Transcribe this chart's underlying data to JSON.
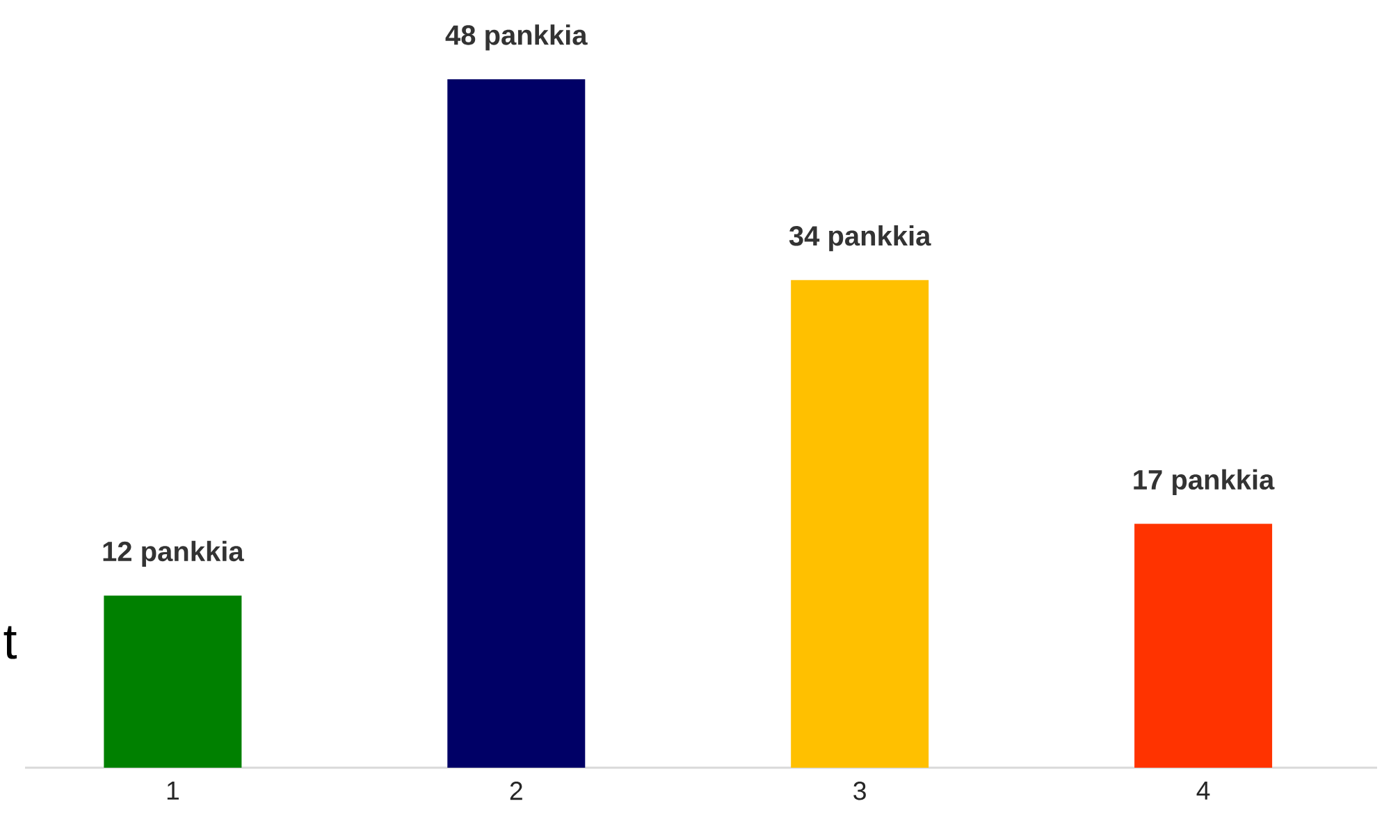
{
  "chart_data": {
    "type": "bar",
    "categories": [
      "1",
      "2",
      "3",
      "4"
    ],
    "values": [
      12,
      48,
      34,
      17
    ],
    "colors": [
      "#008000",
      "#000066",
      "#ffc000",
      "#ff3300"
    ],
    "value_labels": [
      "12 pankkia",
      "48 pankkia",
      "34 pankkia",
      "17 pankkia"
    ],
    "annotations": [
      "t"
    ]
  }
}
